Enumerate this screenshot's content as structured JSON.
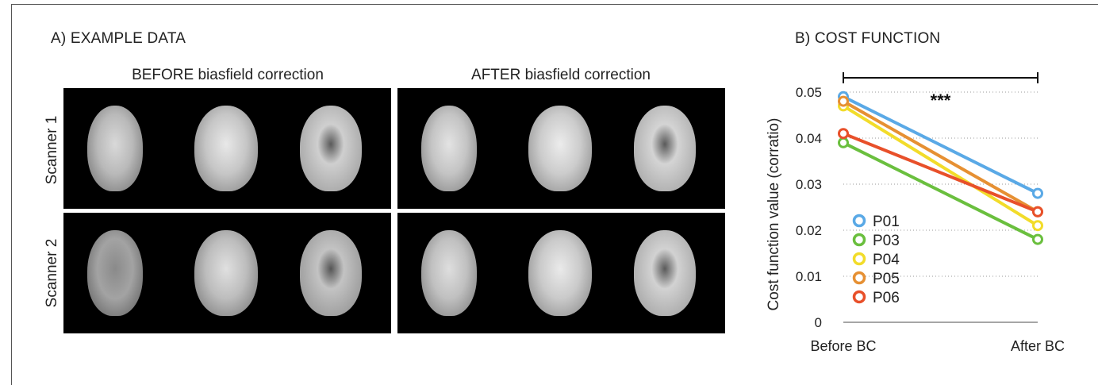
{
  "panel_a": {
    "title": "A) EXAMPLE DATA",
    "col_titles": [
      "BEFORE biasfield correction",
      "AFTER biasfield correction"
    ],
    "row_labels": [
      "Scanner 1",
      "Scanner 2"
    ]
  },
  "panel_b": {
    "title": "B) COST FUNCTION"
  },
  "chart_data": {
    "type": "line",
    "title": "",
    "xlabel": "",
    "ylabel": "Cost function value (corratio)",
    "categories": [
      "Before BC",
      "After BC"
    ],
    "ylim": [
      0,
      0.05
    ],
    "yticks": [
      "0",
      "0.01",
      "0.02",
      "0.03",
      "0.04",
      "0.05"
    ],
    "grid": "horizontal-dotted",
    "significance": "***",
    "legend_placement": "bottom-left-inside",
    "series": [
      {
        "name": "P01",
        "color": "#5aa9e6",
        "values": [
          0.049,
          0.028
        ]
      },
      {
        "name": "P03",
        "color": "#6abf3e",
        "values": [
          0.039,
          0.018
        ]
      },
      {
        "name": "P04",
        "color": "#f2dc2a",
        "values": [
          0.047,
          0.021
        ]
      },
      {
        "name": "P05",
        "color": "#e69033",
        "values": [
          0.048,
          0.024
        ]
      },
      {
        "name": "P06",
        "color": "#e8502a",
        "values": [
          0.041,
          0.024
        ]
      }
    ]
  }
}
